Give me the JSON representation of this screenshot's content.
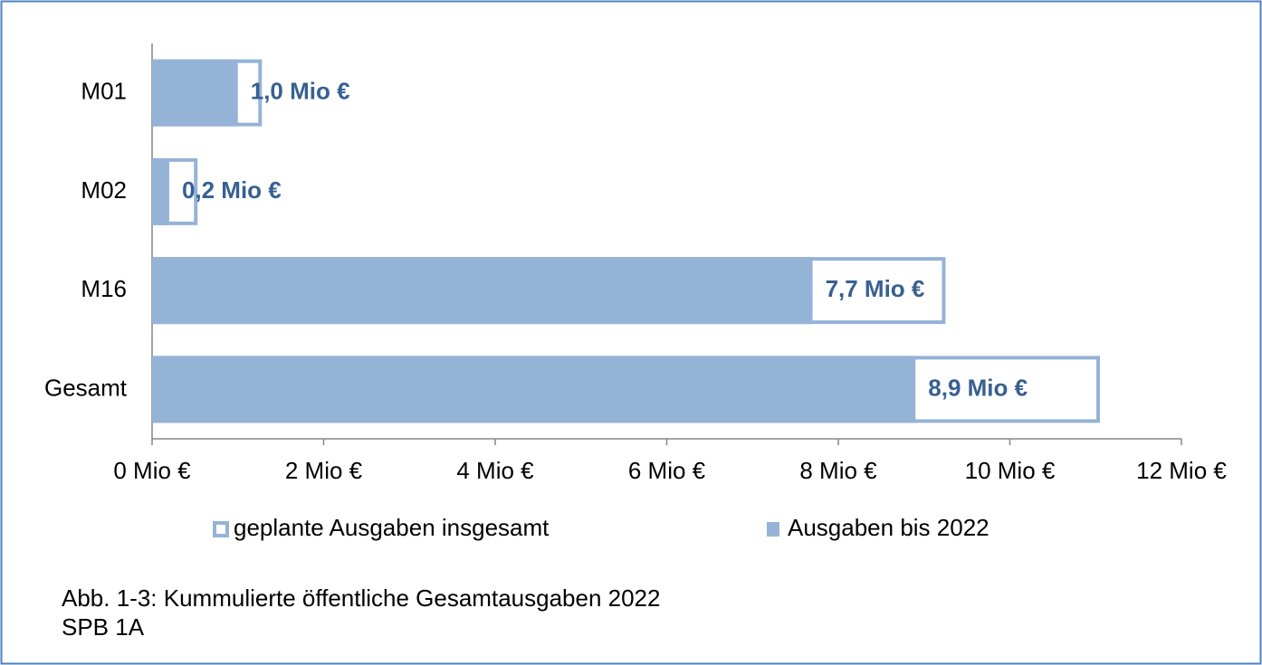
{
  "chart_data": {
    "type": "bar",
    "orientation": "horizontal",
    "caption": [
      "Abb. 1-3: Kummulierte öffentliche Gesamtausgaben 2022",
      "SPB 1A"
    ],
    "categories": [
      "M01",
      "M02",
      "M16",
      "Gesamt"
    ],
    "series": [
      {
        "name": "geplante Ausgaben insgesamt",
        "color": "#95b3d7",
        "style": "outline",
        "values": [
          1.28,
          0.53,
          9.25,
          11.05
        ]
      },
      {
        "name": "Ausgaben bis 2022",
        "color": "#95b3d7",
        "style": "filled",
        "values": [
          1.0,
          0.2,
          7.7,
          8.9
        ],
        "value_labels": [
          "1,0 Mio €",
          "0,2 Mio €",
          "7,7 Mio €",
          "8,9 Mio €"
        ]
      }
    ],
    "xlim": [
      0,
      12
    ],
    "xticks": [
      {
        "value": 0,
        "label": "0 Mio €"
      },
      {
        "value": 2,
        "label": "2 Mio €"
      },
      {
        "value": 4,
        "label": "4 Mio €"
      },
      {
        "value": 6,
        "label": "6 Mio €"
      },
      {
        "value": 8,
        "label": "8 Mio €"
      },
      {
        "value": 10,
        "label": "10 Mio €"
      },
      {
        "value": 12,
        "label": "12 Mio €"
      }
    ],
    "label_color": "#376092",
    "grid": false
  }
}
